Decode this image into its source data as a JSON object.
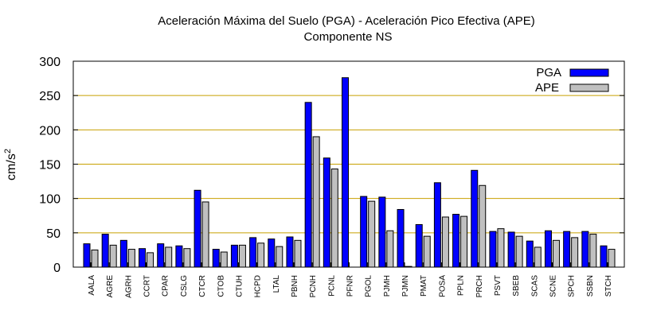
{
  "chart_data": {
    "type": "bar",
    "title": "Aceleración Máxima del Suelo (PGA) -  Aceleración Pico Efectiva (APE)",
    "subtitle": "Componente NS",
    "xlabel": "",
    "ylabel": "cm/s",
    "ylabel_superscript": "2",
    "ylim": [
      0,
      300
    ],
    "yticks": [
      0,
      50,
      100,
      150,
      200,
      250,
      300
    ],
    "grid": true,
    "legend_position": "top-right",
    "categories": [
      "AALA",
      "AGRE",
      "AGRH",
      "CCRT",
      "CPAR",
      "CSLG",
      "CTCR",
      "CTOB",
      "CTUH",
      "HCPD",
      "LTAL",
      "PBNH",
      "PCNH",
      "PCNL",
      "PFNR",
      "PGOL",
      "PJMH",
      "PJMN",
      "PMAT",
      "POSA",
      "PPLN",
      "PRCH",
      "PSVT",
      "SBEB",
      "SCAS",
      "SCNE",
      "SPCH",
      "SSBN",
      "STCH"
    ],
    "series": [
      {
        "name": "PGA",
        "color": "#0000ff",
        "values": [
          34,
          48,
          39,
          27,
          34,
          31,
          112,
          26,
          32,
          43,
          41,
          44,
          240,
          159,
          276,
          103,
          102,
          84,
          62,
          123,
          77,
          141,
          52,
          51,
          38,
          53,
          52,
          52,
          31
        ]
      },
      {
        "name": "APE",
        "color": "#c0c0c0",
        "values": [
          25,
          32,
          26,
          21,
          29,
          27,
          95,
          22,
          32,
          35,
          30,
          39,
          190,
          143,
          0,
          96,
          53,
          1,
          45,
          73,
          74,
          119,
          56,
          45,
          29,
          39,
          43,
          48,
          26
        ]
      }
    ]
  }
}
